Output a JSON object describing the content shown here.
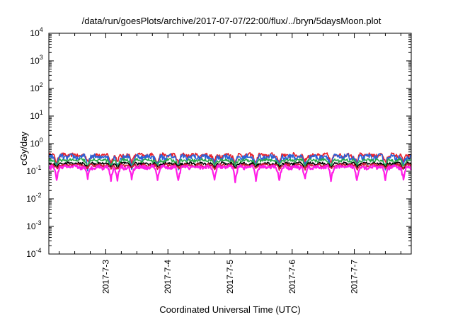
{
  "chart_data": {
    "type": "line",
    "title": "/data/run/goesPlots/archive/2017-07-07/22:00/flux/../bryn/5daysMoon.plot",
    "xlabel": "Coordinated Universal Time (UTC)",
    "ylabel": "cGy/day",
    "yscale": "log",
    "ylim": [
      0.0001,
      10000
    ],
    "xlim": [
      "2017-07-02 02:00",
      "2017-07-07 22:00"
    ],
    "x_ticks": [
      {
        "date": "2017-07-03 00:00",
        "label": "2017-7-3"
      },
      {
        "date": "2017-07-04 00:00",
        "label": "2017-7-4"
      },
      {
        "date": "2017-07-05 00:00",
        "label": "2017-7-5"
      },
      {
        "date": "2017-07-06 00:00",
        "label": "2017-7-6"
      },
      {
        "date": "2017-07-07 00:00",
        "label": "2017-7-7"
      }
    ],
    "y_ticks": [
      {
        "value": 0.0001,
        "base": "10",
        "exp": "-4"
      },
      {
        "value": 0.001,
        "base": "10",
        "exp": "-3"
      },
      {
        "value": 0.01,
        "base": "10",
        "exp": "-2"
      },
      {
        "value": 0.1,
        "base": "10",
        "exp": "-1"
      },
      {
        "value": 1,
        "base": "10",
        "exp": "0"
      },
      {
        "value": 10,
        "base": "10",
        "exp": "1"
      },
      {
        "value": 100,
        "base": "10",
        "exp": "2"
      },
      {
        "value": 1000,
        "base": "10",
        "exp": "3"
      },
      {
        "value": 10000,
        "base": "10",
        "exp": "4"
      }
    ],
    "grid": false,
    "legend": "none",
    "series": [
      {
        "color": "#e8202a",
        "baseline": 0.38,
        "variation": 0.06,
        "dip_depth": 0.55
      },
      {
        "color": "#2a63d8",
        "baseline": 0.33,
        "variation": 0.07,
        "dip_depth": 0.45
      },
      {
        "color": "#2aa84a",
        "baseline": 0.25,
        "variation": 0.03,
        "dip_depth": 0.6
      },
      {
        "color": "#000000",
        "baseline": 0.19,
        "variation": 0.02,
        "dip_depth": 0.7
      },
      {
        "color": "#cc1f3a",
        "baseline": 0.165,
        "variation": 0.02,
        "dip_depth": 0.75
      },
      {
        "color": "#ff1ee6",
        "baseline": 0.14,
        "variation": 0.02,
        "dip_depth": 0.35
      }
    ],
    "dip_times": [
      "2017-07-02 05:00",
      "2017-07-02 17:00",
      "2017-07-03 02:00",
      "2017-07-03 04:30",
      "2017-07-03 10:00",
      "2017-07-03 20:00",
      "2017-07-04 04:00",
      "2017-07-04 18:00",
      "2017-07-05 02:00",
      "2017-07-05 10:00",
      "2017-07-05 19:00",
      "2017-07-06 05:00",
      "2017-07-06 15:00",
      "2017-07-07 01:00",
      "2017-07-07 12:00",
      "2017-07-07 19:00"
    ]
  }
}
